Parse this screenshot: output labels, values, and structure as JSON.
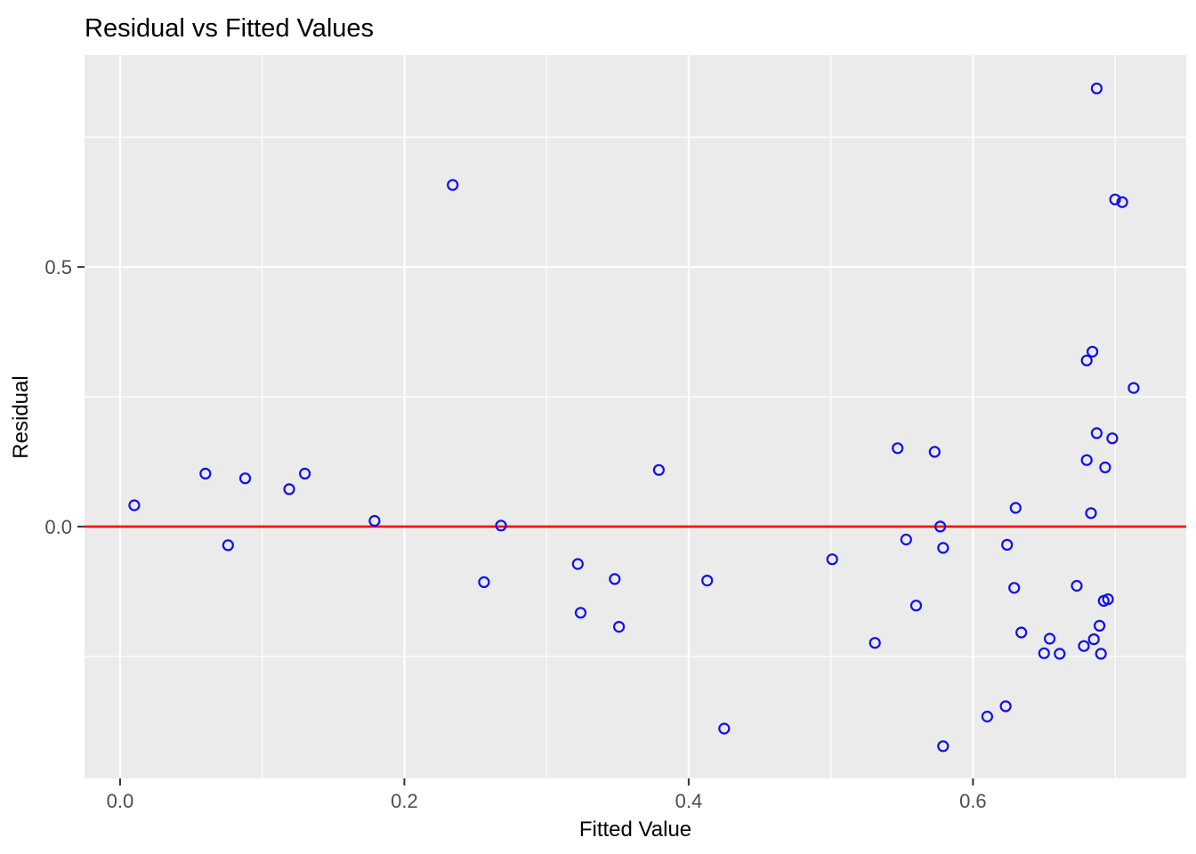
{
  "title": "Residual vs Fitted Values",
  "chart_data": {
    "type": "scatter",
    "title": "Residual vs Fitted Values",
    "xlabel": "Fitted Value",
    "ylabel": "Residual",
    "xlim": [
      -0.025,
      0.75
    ],
    "ylim": [
      -0.485,
      0.908
    ],
    "x_major_ticks": [
      0.0,
      0.2,
      0.4,
      0.6
    ],
    "x_tick_labels": [
      "0.0",
      "0.2",
      "0.4",
      "0.6"
    ],
    "x_minor_ticks": [
      0.1,
      0.3,
      0.5,
      0.7
    ],
    "y_major_ticks": [
      0.0,
      0.5
    ],
    "y_tick_labels": [
      "0.0",
      "0.5"
    ],
    "y_minor_ticks": [
      -0.25,
      0.25,
      0.75
    ],
    "reference_line": {
      "y": 0.0,
      "color": "#FF0000"
    },
    "legend": "none",
    "grid": true,
    "panel_bg": "#EBEBEB",
    "grid_color": "#FFFFFF",
    "point_color": "#1010EE",
    "tick_color": "#333333",
    "points": [
      [
        0.01,
        0.041
      ],
      [
        0.06,
        0.102
      ],
      [
        0.076,
        -0.036
      ],
      [
        0.088,
        0.093
      ],
      [
        0.119,
        0.072
      ],
      [
        0.13,
        0.102
      ],
      [
        0.179,
        0.011
      ],
      [
        0.234,
        0.658
      ],
      [
        0.256,
        -0.107
      ],
      [
        0.268,
        0.002
      ],
      [
        0.322,
        -0.072
      ],
      [
        0.324,
        -0.166
      ],
      [
        0.348,
        -0.101
      ],
      [
        0.351,
        -0.193
      ],
      [
        0.379,
        0.109
      ],
      [
        0.413,
        -0.104
      ],
      [
        0.425,
        -0.389
      ],
      [
        0.501,
        -0.063
      ],
      [
        0.531,
        -0.224
      ],
      [
        0.547,
        0.151
      ],
      [
        0.553,
        -0.025
      ],
      [
        0.56,
        -0.152
      ],
      [
        0.573,
        0.144
      ],
      [
        0.577,
        0.0
      ],
      [
        0.579,
        -0.041
      ],
      [
        0.579,
        -0.423
      ],
      [
        0.61,
        -0.366
      ],
      [
        0.623,
        -0.346
      ],
      [
        0.624,
        -0.035
      ],
      [
        0.63,
        0.036
      ],
      [
        0.629,
        -0.118
      ],
      [
        0.634,
        -0.204
      ],
      [
        0.65,
        -0.244
      ],
      [
        0.654,
        -0.216
      ],
      [
        0.661,
        -0.245
      ],
      [
        0.673,
        -0.114
      ],
      [
        0.678,
        -0.23
      ],
      [
        0.687,
        0.844
      ],
      [
        0.68,
        0.32
      ],
      [
        0.684,
        0.337
      ],
      [
        0.713,
        0.267
      ],
      [
        0.687,
        0.18
      ],
      [
        0.698,
        0.17
      ],
      [
        0.68,
        0.128
      ],
      [
        0.693,
        0.114
      ],
      [
        0.683,
        0.026
      ],
      [
        0.692,
        -0.143
      ],
      [
        0.695,
        -0.14
      ],
      [
        0.689,
        -0.191
      ],
      [
        0.685,
        -0.217
      ],
      [
        0.69,
        -0.245
      ],
      [
        0.7,
        0.63
      ],
      [
        0.705,
        0.625
      ]
    ]
  }
}
